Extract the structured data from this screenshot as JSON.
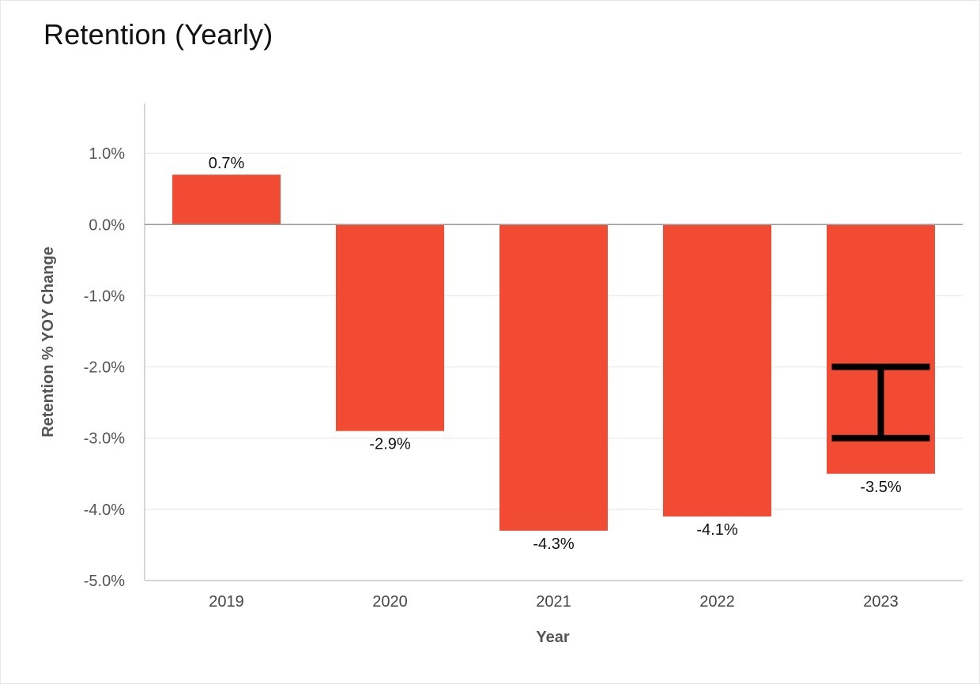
{
  "title": "Retention (Yearly)",
  "chart_data": {
    "type": "bar",
    "categories": [
      "2019",
      "2020",
      "2021",
      "2022",
      "2023"
    ],
    "values": [
      0.7,
      -2.9,
      -4.3,
      -4.1,
      -3.5
    ],
    "data_labels": [
      "0.7%",
      "-2.9%",
      "-4.3%",
      "-4.1%",
      "-3.5%"
    ],
    "xlabel": "Year",
    "ylabel": "Retention % YOY Change",
    "ylim": [
      -5.0,
      1.7
    ],
    "yticks": [
      1.0,
      0.0,
      -1.0,
      -2.0,
      -3.0,
      -4.0,
      -5.0
    ],
    "ytick_labels": [
      "1.0%",
      "0.0%",
      "-1.0%",
      "-2.0%",
      "-3.0%",
      "-4.0%",
      "-5.0%"
    ],
    "grid": true,
    "bar_color": "#f24b34",
    "error_bars": [
      {
        "category": "2023",
        "low": -3.0,
        "high": -2.0,
        "color": "#000000"
      }
    ]
  }
}
